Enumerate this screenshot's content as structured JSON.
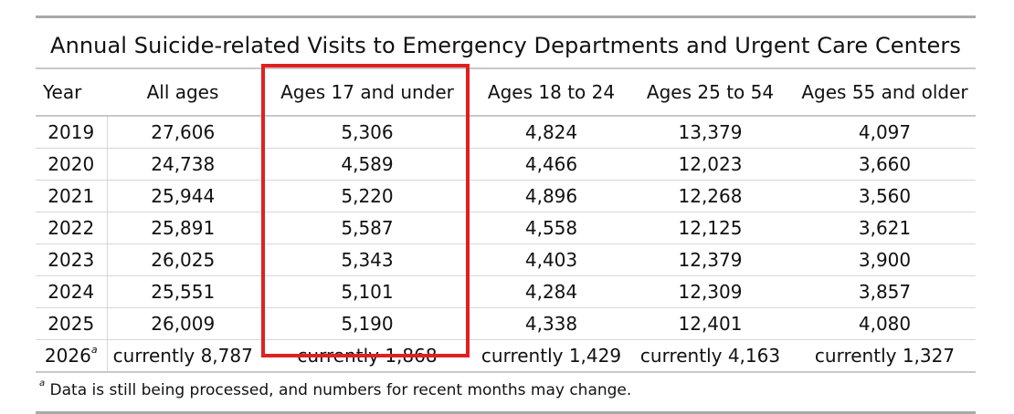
{
  "title": "Annual Suicide-related Visits to Emergency Departments and Urgent Care Centers",
  "columns": [
    "Year",
    "All ages",
    "Ages 17 and under",
    "Ages 18 to 24",
    "Ages 25 to 54",
    "Ages 55 and older"
  ],
  "rows": [
    {
      "year": "2019",
      "year_mark": "",
      "cells": [
        "27,606",
        "5,306",
        "4,824",
        "13,379",
        "4,097"
      ]
    },
    {
      "year": "2020",
      "year_mark": "",
      "cells": [
        "24,738",
        "4,589",
        "4,466",
        "12,023",
        "3,660"
      ]
    },
    {
      "year": "2021",
      "year_mark": "",
      "cells": [
        "25,944",
        "5,220",
        "4,896",
        "12,268",
        "3,560"
      ]
    },
    {
      "year": "2022",
      "year_mark": "",
      "cells": [
        "25,891",
        "5,587",
        "4,558",
        "12,125",
        "3,621"
      ]
    },
    {
      "year": "2023",
      "year_mark": "",
      "cells": [
        "26,025",
        "5,343",
        "4,403",
        "12,379",
        "3,900"
      ]
    },
    {
      "year": "2024",
      "year_mark": "",
      "cells": [
        "25,551",
        "5,101",
        "4,284",
        "12,309",
        "3,857"
      ]
    },
    {
      "year": "2025",
      "year_mark": "",
      "cells": [
        "26,009",
        "5,190",
        "4,338",
        "12,401",
        "4,080"
      ]
    },
    {
      "year": "2026",
      "year_mark": "a",
      "cells": [
        "currently 8,787",
        "currently 1,868",
        "currently 1,429",
        "currently 4,163",
        "currently 1,327"
      ]
    }
  ],
  "footnote": {
    "mark": "a",
    "text": " Data is still being processed, and numbers for recent months may change."
  },
  "highlight": {
    "column": "Ages 17 and under",
    "color": "#e0201f"
  }
}
